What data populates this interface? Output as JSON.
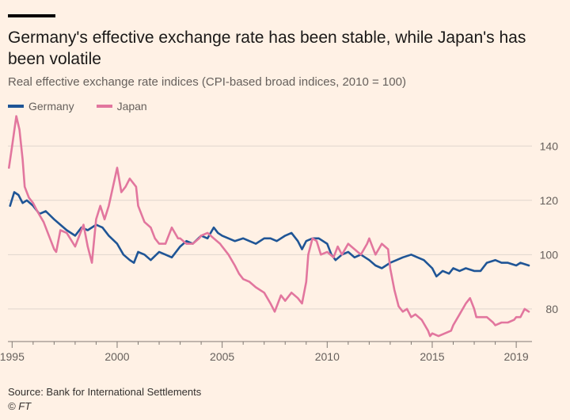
{
  "title": "Germany's effective exchange rate has been stable, while Japan's has been volatile",
  "subtitle": "Real effective exchange rate indices (CPI-based broad indices, 2010 = 100)",
  "source": "Source: Bank for International Settlements",
  "credit": "© FT",
  "colors": {
    "background": "#fff1e5",
    "germany": "#1f5596",
    "japan": "#e2769e",
    "grid": "#e0d6cd",
    "axis": "#66605c"
  },
  "chart_data": {
    "type": "line",
    "xlim": [
      1994.8,
      2019.75
    ],
    "ylim": [
      68,
      150
    ],
    "x_ticks": [
      {
        "value": 1995,
        "label": "1995"
      },
      {
        "value": 2000,
        "label": "2000"
      },
      {
        "value": 2005,
        "label": "2005"
      },
      {
        "value": 2010,
        "label": "2010"
      },
      {
        "value": 2015,
        "label": "2015"
      },
      {
        "value": 2019,
        "label": "2019"
      }
    ],
    "y_ticks": [
      {
        "value": 80,
        "label": "80"
      },
      {
        "value": 100,
        "label": "100"
      },
      {
        "value": 120,
        "label": "120"
      },
      {
        "value": 140,
        "label": "140"
      }
    ],
    "grid": true,
    "legend": "top-left",
    "series": [
      {
        "name": "Germany",
        "color": "#1f5596",
        "points": [
          [
            1994.9,
            118
          ],
          [
            1995.1,
            123
          ],
          [
            1995.3,
            122
          ],
          [
            1995.5,
            119
          ],
          [
            1995.7,
            120
          ],
          [
            1996,
            118
          ],
          [
            1996.3,
            115
          ],
          [
            1996.6,
            116
          ],
          [
            1997,
            113
          ],
          [
            1997.3,
            111
          ],
          [
            1997.6,
            109
          ],
          [
            1998,
            107
          ],
          [
            1998.3,
            110
          ],
          [
            1998.6,
            109
          ],
          [
            1999,
            111
          ],
          [
            1999.3,
            110
          ],
          [
            1999.6,
            107
          ],
          [
            2000,
            104
          ],
          [
            2000.3,
            100
          ],
          [
            2000.6,
            98
          ],
          [
            2000.8,
            97
          ],
          [
            2001,
            101
          ],
          [
            2001.3,
            100
          ],
          [
            2001.6,
            98
          ],
          [
            2002,
            101
          ],
          [
            2002.3,
            100
          ],
          [
            2002.6,
            99
          ],
          [
            2003,
            103
          ],
          [
            2003.3,
            105
          ],
          [
            2003.6,
            104
          ],
          [
            2004,
            107
          ],
          [
            2004.3,
            106
          ],
          [
            2004.6,
            110
          ],
          [
            2004.8,
            108
          ],
          [
            2005,
            107
          ],
          [
            2005.3,
            106
          ],
          [
            2005.6,
            105
          ],
          [
            2006,
            106
          ],
          [
            2006.3,
            105
          ],
          [
            2006.6,
            104
          ],
          [
            2007,
            106
          ],
          [
            2007.3,
            106
          ],
          [
            2007.6,
            105
          ],
          [
            2008,
            107
          ],
          [
            2008.3,
            108
          ],
          [
            2008.6,
            105
          ],
          [
            2008.8,
            102
          ],
          [
            2009,
            105
          ],
          [
            2009.3,
            106
          ],
          [
            2009.6,
            106
          ],
          [
            2010,
            104
          ],
          [
            2010.2,
            100
          ],
          [
            2010.4,
            98
          ],
          [
            2010.7,
            100
          ],
          [
            2011,
            101
          ],
          [
            2011.3,
            99
          ],
          [
            2011.6,
            100
          ],
          [
            2012,
            98
          ],
          [
            2012.3,
            96
          ],
          [
            2012.6,
            95
          ],
          [
            2013,
            97
          ],
          [
            2013.3,
            98
          ],
          [
            2013.6,
            99
          ],
          [
            2014,
            100
          ],
          [
            2014.3,
            99
          ],
          [
            2014.6,
            98
          ],
          [
            2015,
            95
          ],
          [
            2015.2,
            92
          ],
          [
            2015.5,
            94
          ],
          [
            2015.8,
            93
          ],
          [
            2016,
            95
          ],
          [
            2016.3,
            94
          ],
          [
            2016.6,
            95
          ],
          [
            2017,
            94
          ],
          [
            2017.3,
            94
          ],
          [
            2017.6,
            97
          ],
          [
            2018,
            98
          ],
          [
            2018.3,
            97
          ],
          [
            2018.6,
            97
          ],
          [
            2019,
            96
          ],
          [
            2019.2,
            97
          ],
          [
            2019.6,
            96
          ]
        ]
      },
      {
        "name": "Japan",
        "color": "#e2769e",
        "points": [
          [
            1994.85,
            132
          ],
          [
            1995,
            140
          ],
          [
            1995.2,
            151
          ],
          [
            1995.35,
            146
          ],
          [
            1995.5,
            135
          ],
          [
            1995.6,
            125
          ],
          [
            1995.8,
            121
          ],
          [
            1996,
            119
          ],
          [
            1996.2,
            116
          ],
          [
            1996.5,
            112
          ],
          [
            1996.8,
            106
          ],
          [
            1997,
            102
          ],
          [
            1997.1,
            101
          ],
          [
            1997.3,
            109
          ],
          [
            1997.6,
            108
          ],
          [
            1998,
            103
          ],
          [
            1998.2,
            107
          ],
          [
            1998.4,
            111
          ],
          [
            1998.6,
            103
          ],
          [
            1998.8,
            97
          ],
          [
            1999,
            113
          ],
          [
            1999.2,
            118
          ],
          [
            1999.4,
            113
          ],
          [
            1999.6,
            118
          ],
          [
            1999.8,
            125
          ],
          [
            2000,
            132
          ],
          [
            2000.2,
            123
          ],
          [
            2000.4,
            125
          ],
          [
            2000.6,
            128
          ],
          [
            2000.9,
            125
          ],
          [
            2001,
            118
          ],
          [
            2001.3,
            112
          ],
          [
            2001.6,
            110
          ],
          [
            2001.8,
            106
          ],
          [
            2002,
            104
          ],
          [
            2002.3,
            104
          ],
          [
            2002.6,
            110
          ],
          [
            2002.9,
            106
          ],
          [
            2003,
            106
          ],
          [
            2003.3,
            104
          ],
          [
            2003.6,
            104
          ],
          [
            2003.9,
            106
          ],
          [
            2004,
            107
          ],
          [
            2004.3,
            108
          ],
          [
            2004.6,
            106
          ],
          [
            2004.9,
            104
          ],
          [
            2005,
            103
          ],
          [
            2005.3,
            100
          ],
          [
            2005.6,
            96
          ],
          [
            2005.8,
            93
          ],
          [
            2006,
            91
          ],
          [
            2006.3,
            90
          ],
          [
            2006.6,
            88
          ],
          [
            2007,
            86
          ],
          [
            2007.3,
            82
          ],
          [
            2007.5,
            79
          ],
          [
            2007.8,
            85
          ],
          [
            2008,
            83
          ],
          [
            2008.3,
            86
          ],
          [
            2008.6,
            84
          ],
          [
            2008.8,
            82
          ],
          [
            2009,
            90
          ],
          [
            2009.1,
            100
          ],
          [
            2009.3,
            106
          ],
          [
            2009.5,
            105
          ],
          [
            2009.7,
            100
          ],
          [
            2010,
            101
          ],
          [
            2010.3,
            99
          ],
          [
            2010.5,
            103
          ],
          [
            2010.7,
            100
          ],
          [
            2011,
            104
          ],
          [
            2011.3,
            102
          ],
          [
            2011.6,
            100
          ],
          [
            2011.9,
            104
          ],
          [
            2012,
            106
          ],
          [
            2012.3,
            100
          ],
          [
            2012.6,
            104
          ],
          [
            2012.9,
            102
          ],
          [
            2013,
            95
          ],
          [
            2013.2,
            87
          ],
          [
            2013.4,
            81
          ],
          [
            2013.6,
            79
          ],
          [
            2013.8,
            80
          ],
          [
            2014,
            77
          ],
          [
            2014.2,
            78
          ],
          [
            2014.5,
            76
          ],
          [
            2014.8,
            72
          ],
          [
            2014.9,
            70
          ],
          [
            2015,
            71
          ],
          [
            2015.3,
            70
          ],
          [
            2015.6,
            71
          ],
          [
            2015.9,
            72
          ],
          [
            2016,
            74
          ],
          [
            2016.3,
            78
          ],
          [
            2016.6,
            82
          ],
          [
            2016.8,
            84
          ],
          [
            2017,
            80
          ],
          [
            2017.1,
            77
          ],
          [
            2017.4,
            77
          ],
          [
            2017.6,
            77
          ],
          [
            2017.9,
            75
          ],
          [
            2018,
            74
          ],
          [
            2018.3,
            75
          ],
          [
            2018.6,
            75
          ],
          [
            2018.9,
            76
          ],
          [
            2019,
            77
          ],
          [
            2019.2,
            77
          ],
          [
            2019.4,
            80
          ],
          [
            2019.6,
            79
          ]
        ]
      }
    ]
  }
}
